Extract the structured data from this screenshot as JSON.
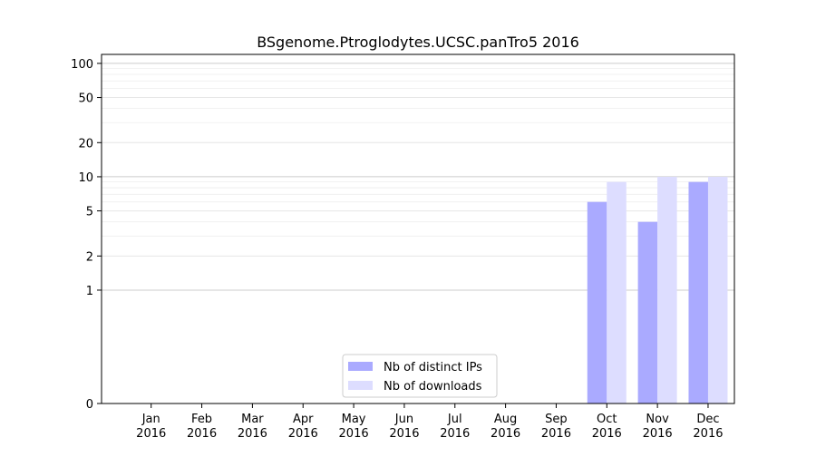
{
  "chart_data": {
    "type": "bar",
    "title": "BSgenome.Ptroglodytes.UCSC.panTro5 2016",
    "xlabel": "",
    "ylabel": "",
    "yscale": "symlog",
    "ylim": [
      0,
      120
    ],
    "y_ticks": [
      {
        "value": 0,
        "label": "0"
      },
      {
        "value": 1,
        "label": "1"
      },
      {
        "value": 2,
        "label": "2"
      },
      {
        "value": 5,
        "label": "5"
      },
      {
        "value": 10,
        "label": "10"
      },
      {
        "value": 20,
        "label": "20"
      },
      {
        "value": 50,
        "label": "50"
      },
      {
        "value": 100,
        "label": "100"
      }
    ],
    "categories": [
      {
        "month": "Jan",
        "year": "2016"
      },
      {
        "month": "Feb",
        "year": "2016"
      },
      {
        "month": "Mar",
        "year": "2016"
      },
      {
        "month": "Apr",
        "year": "2016"
      },
      {
        "month": "May",
        "year": "2016"
      },
      {
        "month": "Jun",
        "year": "2016"
      },
      {
        "month": "Jul",
        "year": "2016"
      },
      {
        "month": "Aug",
        "year": "2016"
      },
      {
        "month": "Sep",
        "year": "2016"
      },
      {
        "month": "Oct",
        "year": "2016"
      },
      {
        "month": "Nov",
        "year": "2016"
      },
      {
        "month": "Dec",
        "year": "2016"
      }
    ],
    "series": [
      {
        "name": "Nb of distinct IPs",
        "color": "#aaaaff",
        "values": [
          0,
          0,
          0,
          0,
          0,
          0,
          0,
          0,
          0,
          6,
          4,
          9
        ]
      },
      {
        "name": "Nb of downloads",
        "color": "#ddddff",
        "values": [
          0,
          0,
          0,
          0,
          0,
          0,
          0,
          0,
          0,
          9,
          10,
          10
        ]
      }
    ],
    "legend_position": "bottom-center",
    "grid": true
  }
}
